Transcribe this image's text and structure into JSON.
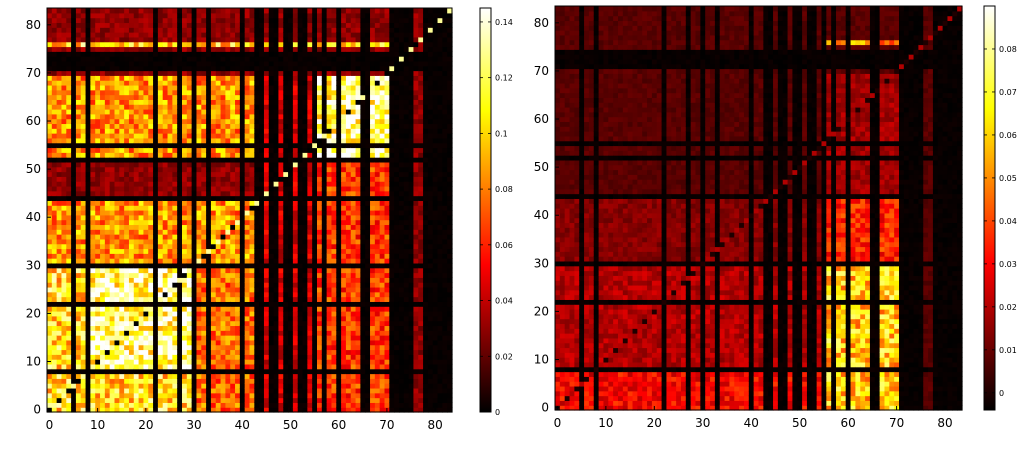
{
  "chart_data": [
    {
      "type": "heatmap",
      "title": "",
      "xlabel": "",
      "ylabel": "",
      "grid": false,
      "n_cells": 84,
      "xlim": [
        0,
        83
      ],
      "ylim": [
        0,
        83
      ],
      "x_ticks": [
        0,
        10,
        20,
        30,
        40,
        50,
        60,
        70,
        80
      ],
      "y_ticks": [
        0,
        10,
        20,
        30,
        40,
        50,
        60,
        70,
        80
      ],
      "colorscale": "hot",
      "colorbar_range": [
        0,
        0.145
      ],
      "colorbar_ticks": [
        0,
        0.02,
        0.04,
        0.06,
        0.08,
        0.1,
        0.12,
        0.14
      ],
      "colorbar_tick_labels": [
        "0",
        "0.02",
        "0.04",
        "0.06",
        "0.08",
        "0.1",
        "0.12",
        "0.14"
      ],
      "dark_lines": [
        8,
        22,
        30,
        44,
        52,
        55,
        71,
        72,
        73,
        74
      ],
      "dark_cols_extra": [
        5,
        27,
        33,
        40,
        43,
        46,
        47,
        49,
        50,
        53,
        57,
        60,
        65,
        66,
        75,
        78,
        79,
        80,
        81,
        82,
        83
      ],
      "blocks": [
        {
          "x": [
            0,
            30
          ],
          "y": [
            0,
            30
          ],
          "value": 0.105
        },
        {
          "x": [
            9,
            30
          ],
          "y": [
            9,
            30
          ],
          "value": 0.125
        },
        {
          "x": [
            0,
            44
          ],
          "y": [
            30,
            44
          ],
          "value": 0.085
        },
        {
          "x": [
            30,
            44
          ],
          "y": [
            0,
            30
          ],
          "value": 0.075
        },
        {
          "x": [
            0,
            44
          ],
          "y": [
            52,
            70
          ],
          "value": 0.085
        },
        {
          "x": [
            44,
            56
          ],
          "y": [
            0,
            70
          ],
          "value": 0.045
        },
        {
          "x": [
            56,
            71
          ],
          "y": [
            0,
            52
          ],
          "value": 0.065
        },
        {
          "x": [
            56,
            71
          ],
          "y": [
            52,
            70
          ],
          "value": 0.125
        },
        {
          "x": [
            0,
            71
          ],
          "y": [
            76,
            77
          ],
          "value": 0.105
        }
      ],
      "background_value": 0.03,
      "diagonal_value": 0.0,
      "diagonal_bright_value": 0.13
    },
    {
      "type": "heatmap",
      "title": "",
      "xlabel": "",
      "ylabel": "",
      "grid": false,
      "n_cells": 84,
      "xlim": [
        0,
        83
      ],
      "ylim": [
        0,
        83
      ],
      "x_ticks": [
        0,
        10,
        20,
        30,
        40,
        50,
        60,
        70,
        80
      ],
      "y_ticks": [
        0,
        10,
        20,
        30,
        40,
        50,
        60,
        70,
        80
      ],
      "colorscale": "hot",
      "colorbar_range": [
        -0.004,
        0.09
      ],
      "colorbar_ticks": [
        0,
        0.01,
        0.02,
        0.03,
        0.04,
        0.05,
        0.06,
        0.07,
        0.08
      ],
      "colorbar_tick_labels": [
        "0",
        "0.01",
        "0.02",
        "0.03",
        "0.04",
        "0.05",
        "0.06",
        "0.07",
        "0.08"
      ],
      "dark_lines": [
        8,
        22,
        30,
        44,
        52,
        55,
        71,
        72,
        73,
        74
      ],
      "dark_cols_extra": [
        5,
        27,
        33,
        40,
        43,
        46,
        47,
        49,
        50,
        53,
        57,
        60,
        65,
        66,
        75,
        78,
        79,
        80,
        81,
        82,
        83
      ],
      "blocks": [
        {
          "x": [
            0,
            56
          ],
          "y": [
            0,
            8
          ],
          "value": 0.03
        },
        {
          "x": [
            0,
            56
          ],
          "y": [
            8,
            30
          ],
          "value": 0.02
        },
        {
          "x": [
            0,
            56
          ],
          "y": [
            30,
            44
          ],
          "value": 0.014
        },
        {
          "x": [
            56,
            71
          ],
          "y": [
            0,
            30
          ],
          "value": 0.06
        },
        {
          "x": [
            56,
            71
          ],
          "y": [
            30,
            44
          ],
          "value": 0.035
        },
        {
          "x": [
            56,
            71
          ],
          "y": [
            44,
            70
          ],
          "value": 0.018
        },
        {
          "x": [
            56,
            71
          ],
          "y": [
            76,
            77
          ],
          "value": 0.05
        }
      ],
      "background_value": 0.008,
      "diagonal_value": 0.0,
      "diagonal_bright_value": 0.02
    }
  ],
  "colors": {
    "background": "#ffffff",
    "axis": "#000000"
  }
}
